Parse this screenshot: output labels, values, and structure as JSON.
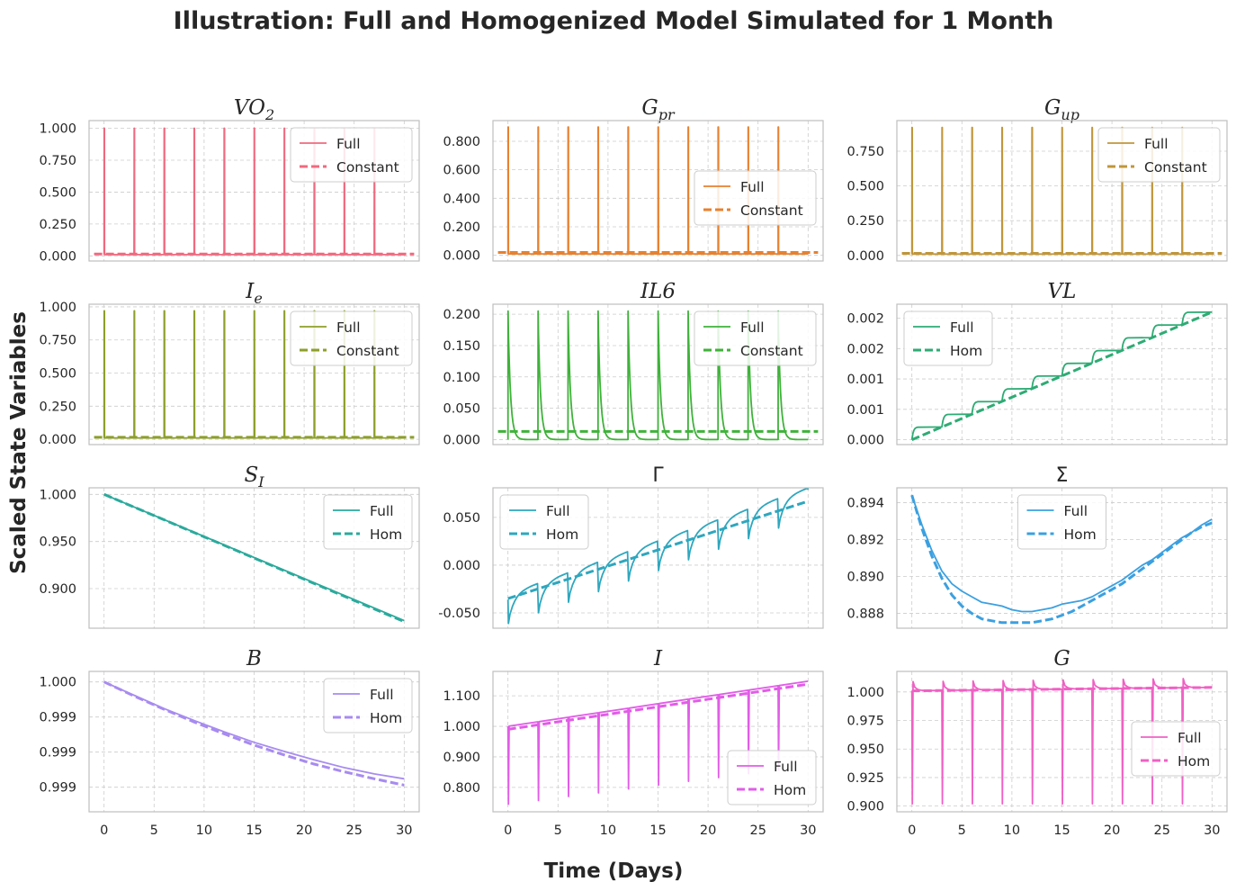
{
  "figure": {
    "title": "Illustration: Full and Homogenized Model Simulated for 1 Month",
    "xlabel": "Time (Days)",
    "ylabel": "Scaled State Variables"
  },
  "chart_data": [
    {
      "type": "line",
      "title": "VO2",
      "title_main": "VO",
      "title_sub": "2",
      "xlim": [
        -1.5,
        31.5
      ],
      "ylim": [
        -0.04,
        1.06
      ],
      "yticks": [
        0,
        0.25,
        0.5,
        0.75,
        1.0
      ],
      "ytick_labels": [
        "0.000",
        "0.250",
        "0.500",
        "0.750",
        "1.000"
      ],
      "xticks": [
        0,
        5,
        10,
        15,
        20,
        25,
        30
      ],
      "show_xtick_labels": false,
      "color": "#f0697f",
      "legend": "upper right",
      "legend_entries": [
        "Full",
        "Constant"
      ],
      "full_shape": "pulse",
      "pulse_base": 0.01,
      "pulse_peak": 1.0,
      "pulse_decay": 0.03,
      "pulse_days": [
        0,
        3,
        6,
        9,
        12,
        15,
        18,
        21,
        24,
        27
      ],
      "constant_value": 0.015
    },
    {
      "type": "line",
      "title": "Gpr",
      "title_main": "G",
      "title_sub": "pr",
      "xlim": [
        -1.5,
        31.5
      ],
      "ylim": [
        -0.04,
        0.945
      ],
      "yticks": [
        0,
        0.2,
        0.4,
        0.6,
        0.8
      ],
      "ytick_labels": [
        "0.000",
        "0.200",
        "0.400",
        "0.600",
        "0.800"
      ],
      "xticks": [
        0,
        5,
        10,
        15,
        20,
        25,
        30
      ],
      "show_xtick_labels": false,
      "color": "#e8812f",
      "legend": "center right",
      "legend_entries": [
        "Full",
        "Constant"
      ],
      "full_shape": "pulse",
      "pulse_base": 0.01,
      "pulse_peak": 0.9,
      "pulse_decay": 0.03,
      "pulse_days": [
        0,
        3,
        6,
        9,
        12,
        15,
        18,
        21,
        24,
        27
      ],
      "constant_value": 0.02
    },
    {
      "type": "line",
      "title": "Gup",
      "title_main": "G",
      "title_sub": "up",
      "xlim": [
        -1.5,
        31.5
      ],
      "ylim": [
        -0.04,
        0.97
      ],
      "yticks": [
        0,
        0.25,
        0.5,
        0.75
      ],
      "ytick_labels": [
        "0.000",
        "0.250",
        "0.500",
        "0.750"
      ],
      "xticks": [
        0,
        5,
        10,
        15,
        20,
        25,
        30
      ],
      "show_xtick_labels": false,
      "color": "#c0963a",
      "legend": "upper right",
      "legend_entries": [
        "Full",
        "Constant"
      ],
      "full_shape": "pulse",
      "pulse_base": 0.01,
      "pulse_peak": 0.92,
      "pulse_decay": 0.03,
      "pulse_days": [
        0,
        3,
        6,
        9,
        12,
        15,
        18,
        21,
        24,
        27
      ],
      "constant_value": 0.015
    },
    {
      "type": "line",
      "title": "Ie",
      "title_main": "I",
      "title_sub": "e",
      "xlim": [
        -1.5,
        31.5
      ],
      "ylim": [
        -0.04,
        1.02
      ],
      "yticks": [
        0,
        0.25,
        0.5,
        0.75,
        1.0
      ],
      "ytick_labels": [
        "0.000",
        "0.250",
        "0.500",
        "0.750",
        "1.000"
      ],
      "xticks": [
        0,
        5,
        10,
        15,
        20,
        25,
        30
      ],
      "show_xtick_labels": false,
      "color": "#8e9f2a",
      "legend": "upper right",
      "legend_entries": [
        "Full",
        "Constant"
      ],
      "full_shape": "pulse",
      "pulse_base": 0.01,
      "pulse_peak": 0.97,
      "pulse_decay": 0.03,
      "pulse_days": [
        0,
        3,
        6,
        9,
        12,
        15,
        18,
        21,
        24,
        27
      ],
      "constant_value": 0.015
    },
    {
      "type": "line",
      "title": "IL6",
      "title_main": "IL6",
      "title_sub": "",
      "xlim": [
        -1.5,
        31.5
      ],
      "ylim": [
        -0.008,
        0.216
      ],
      "yticks": [
        0,
        0.05,
        0.1,
        0.15,
        0.2
      ],
      "ytick_labels": [
        "0.000",
        "0.050",
        "0.100",
        "0.150",
        "0.200"
      ],
      "xticks": [
        0,
        5,
        10,
        15,
        20,
        25,
        30
      ],
      "show_xtick_labels": false,
      "color": "#3fb23a",
      "legend": "upper right",
      "legend_entries": [
        "Full",
        "Constant"
      ],
      "full_shape": "pulse",
      "pulse_base": 0.0,
      "pulse_peak": 0.205,
      "pulse_decay": 0.25,
      "pulse_days": [
        0,
        3,
        6,
        9,
        12,
        15,
        18,
        21,
        24,
        27
      ],
      "constant_value": 0.013
    },
    {
      "type": "line",
      "title": "VL",
      "title_main": "VL",
      "title_sub": "",
      "xlim": [
        -1.5,
        31.5
      ],
      "ylim": [
        -8e-05,
        0.00223
      ],
      "yticks": [
        0,
        0.0005,
        0.001,
        0.0015,
        0.002
      ],
      "ytick_labels": [
        "0.000",
        "0.001",
        "0.001",
        "0.002",
        "0.002"
      ],
      "xticks": [
        0,
        5,
        10,
        15,
        20,
        25,
        30
      ],
      "show_xtick_labels": false,
      "color": "#2eab74",
      "legend": "upper left",
      "legend_entries": [
        "Full",
        "Hom"
      ],
      "full_shape": "staircase",
      "stair_start": 0.0,
      "stair_end": 0.0021,
      "stair_days": [
        0,
        3,
        6,
        9,
        12,
        15,
        18,
        21,
        24,
        27
      ],
      "hom_points": [
        [
          0,
          0.0
        ],
        [
          30,
          0.0021
        ]
      ]
    },
    {
      "type": "line",
      "title": "SI",
      "title_main": "S",
      "title_sub": "I",
      "xlim": [
        -1.5,
        31.5
      ],
      "ylim": [
        0.858,
        1.007
      ],
      "yticks": [
        0.9,
        0.95,
        1.0
      ],
      "ytick_labels": [
        "0.900",
        "0.950",
        "1.000"
      ],
      "xticks": [
        0,
        5,
        10,
        15,
        20,
        25,
        30
      ],
      "show_xtick_labels": false,
      "color": "#2aaa9c",
      "legend": "upper right",
      "legend_entries": [
        "Full",
        "Hom"
      ],
      "full_points": [
        [
          0,
          1.0
        ],
        [
          30,
          0.866
        ]
      ],
      "hom_points": [
        [
          0,
          1.0
        ],
        [
          30,
          0.865
        ]
      ]
    },
    {
      "type": "line",
      "title": "Γ",
      "title_main": "Γ",
      "title_sub": "",
      "upright": true,
      "xlim": [
        -1.5,
        31.5
      ],
      "ylim": [
        -0.066,
        0.081
      ],
      "yticks": [
        -0.05,
        0,
        0.05
      ],
      "ytick_labels": [
        "-0.050",
        "0.000",
        "0.050"
      ],
      "xticks": [
        0,
        5,
        10,
        15,
        20,
        25,
        30
      ],
      "show_xtick_labels": false,
      "color": "#2ea7be",
      "legend": "upper left",
      "legend_entries": [
        "Full",
        "Hom"
      ],
      "full_shape": "sawtooth",
      "saw_start": -0.036,
      "saw_end": 0.075,
      "saw_dip": 0.025,
      "saw_days": [
        0,
        3,
        6,
        9,
        12,
        15,
        18,
        21,
        24,
        27
      ],
      "hom_points": [
        [
          0,
          -0.035
        ],
        [
          30,
          0.067
        ]
      ]
    },
    {
      "type": "line",
      "title": "Σ",
      "title_main": "Σ",
      "title_sub": "",
      "upright": true,
      "xlim": [
        -1.5,
        31.5
      ],
      "ylim": [
        0.8872,
        0.8948
      ],
      "yticks": [
        0.888,
        0.89,
        0.892,
        0.894
      ],
      "ytick_labels": [
        "0.888",
        "0.890",
        "0.892",
        "0.894"
      ],
      "xticks": [
        0,
        5,
        10,
        15,
        20,
        25,
        30
      ],
      "show_xtick_labels": false,
      "color": "#3ba0e0",
      "legend": "upper center",
      "legend_entries": [
        "Full",
        "Hom"
      ],
      "full_points": [
        [
          0,
          0.8944
        ],
        [
          1,
          0.8928
        ],
        [
          2,
          0.8914
        ],
        [
          3,
          0.8903
        ],
        [
          4,
          0.8896
        ],
        [
          5,
          0.8892
        ],
        [
          6,
          0.8889
        ],
        [
          7,
          0.8886
        ],
        [
          8,
          0.8885
        ],
        [
          9,
          0.8884
        ],
        [
          10,
          0.8882
        ],
        [
          11,
          0.8881
        ],
        [
          12,
          0.8881
        ],
        [
          13,
          0.8882
        ],
        [
          14,
          0.8883
        ],
        [
          15,
          0.8885
        ],
        [
          16,
          0.8886
        ],
        [
          17,
          0.8887
        ],
        [
          18,
          0.8889
        ],
        [
          19,
          0.8892
        ],
        [
          20,
          0.8895
        ],
        [
          21,
          0.8898
        ],
        [
          22,
          0.8902
        ],
        [
          23,
          0.8906
        ],
        [
          24,
          0.8909
        ],
        [
          25,
          0.8913
        ],
        [
          26,
          0.8917
        ],
        [
          27,
          0.8921
        ],
        [
          28,
          0.8924
        ],
        [
          29,
          0.8928
        ],
        [
          30,
          0.8931
        ]
      ],
      "hom_points": [
        [
          0,
          0.8944
        ],
        [
          1,
          0.8926
        ],
        [
          2,
          0.8911
        ],
        [
          3,
          0.8899
        ],
        [
          4,
          0.889
        ],
        [
          5,
          0.8884
        ],
        [
          6,
          0.888
        ],
        [
          7,
          0.8877
        ],
        [
          8,
          0.8876
        ],
        [
          9,
          0.8875
        ],
        [
          10,
          0.8875
        ],
        [
          11,
          0.8875
        ],
        [
          12,
          0.8875
        ],
        [
          13,
          0.8876
        ],
        [
          14,
          0.8877
        ],
        [
          15,
          0.8879
        ],
        [
          16,
          0.8881
        ],
        [
          17,
          0.8884
        ],
        [
          18,
          0.8887
        ],
        [
          19,
          0.889
        ],
        [
          20,
          0.8893
        ],
        [
          21,
          0.8896
        ],
        [
          22,
          0.89
        ],
        [
          23,
          0.8904
        ],
        [
          24,
          0.8908
        ],
        [
          25,
          0.8912
        ],
        [
          26,
          0.8916
        ],
        [
          27,
          0.892
        ],
        [
          28,
          0.8924
        ],
        [
          29,
          0.8927
        ],
        [
          30,
          0.8929
        ]
      ]
    },
    {
      "type": "line",
      "title": "B",
      "title_main": "B",
      "title_sub": "",
      "xlim": [
        -1.5,
        31.5
      ],
      "ylim": [
        0.99815,
        1.00015
      ],
      "yticks": [
        0.9985,
        0.999,
        0.9995,
        1.0
      ],
      "ytick_labels": [
        "0.999",
        "0.999",
        "0.999",
        "1.000"
      ],
      "xticks": [
        0,
        5,
        10,
        15,
        20,
        25,
        30
      ],
      "show_xtick_labels": true,
      "color": "#a78bf0",
      "legend": "upper right",
      "legend_entries": [
        "Full",
        "Hom"
      ],
      "full_points": [
        [
          0,
          1.0
        ],
        [
          3,
          0.99981
        ],
        [
          6,
          0.99962
        ],
        [
          9,
          0.99945
        ],
        [
          12,
          0.99929
        ],
        [
          15,
          0.99914
        ],
        [
          18,
          0.99901
        ],
        [
          21,
          0.99889
        ],
        [
          24,
          0.99878
        ],
        [
          27,
          0.99869
        ],
        [
          30,
          0.99862
        ]
      ],
      "hom_points": [
        [
          0,
          1.0
        ],
        [
          3,
          0.9998
        ],
        [
          6,
          0.99961
        ],
        [
          9,
          0.99943
        ],
        [
          12,
          0.99926
        ],
        [
          15,
          0.9991
        ],
        [
          18,
          0.99896
        ],
        [
          21,
          0.99883
        ],
        [
          24,
          0.99872
        ],
        [
          27,
          0.99862
        ],
        [
          30,
          0.99853
        ]
      ]
    },
    {
      "type": "line",
      "title": "I",
      "title_main": "I",
      "title_sub": "",
      "xlim": [
        -1.5,
        31.5
      ],
      "ylim": [
        0.72,
        1.18
      ],
      "yticks": [
        0.8,
        0.9,
        1.0,
        1.1
      ],
      "ytick_labels": [
        "0.800",
        "0.900",
        "1.000",
        "1.100"
      ],
      "xticks": [
        0,
        5,
        10,
        15,
        20,
        25,
        30
      ],
      "show_xtick_labels": true,
      "color": "#e25ce8",
      "legend": "lower right",
      "legend_entries": [
        "Full",
        "Hom"
      ],
      "full_shape": "dips",
      "dip_start": 1.0,
      "dip_end": 1.148,
      "dip_values": [
        0.745,
        0.757,
        0.77,
        0.782,
        0.795,
        0.808,
        0.82,
        0.832,
        0.845,
        0.857
      ],
      "dip_days": [
        0,
        3,
        6,
        9,
        12,
        15,
        18,
        21,
        24,
        27
      ],
      "hom_points": [
        [
          0,
          0.99
        ],
        [
          30,
          1.138
        ]
      ]
    },
    {
      "type": "line",
      "title": "G",
      "title_main": "G",
      "title_sub": "",
      "xlim": [
        -1.5,
        31.5
      ],
      "ylim": [
        0.895,
        1.018
      ],
      "yticks": [
        0.9,
        0.925,
        0.95,
        0.975,
        1.0
      ],
      "ytick_labels": [
        "0.900",
        "0.925",
        "0.950",
        "0.975",
        "1.000"
      ],
      "xticks": [
        0,
        5,
        10,
        15,
        20,
        25,
        30
      ],
      "show_xtick_labels": true,
      "color": "#f060c4",
      "legend": "center right",
      "legend_entries": [
        "Full",
        "Hom"
      ],
      "full_shape": "gdips",
      "g_base_start": 1.001,
      "g_base_end": 1.004,
      "g_spike": 0.008,
      "g_dip": 0.902,
      "dip_days": [
        0,
        3,
        6,
        9,
        12,
        15,
        18,
        21,
        24,
        27
      ],
      "hom_points": [
        [
          0,
          1.001
        ],
        [
          30,
          1.004
        ]
      ]
    }
  ]
}
